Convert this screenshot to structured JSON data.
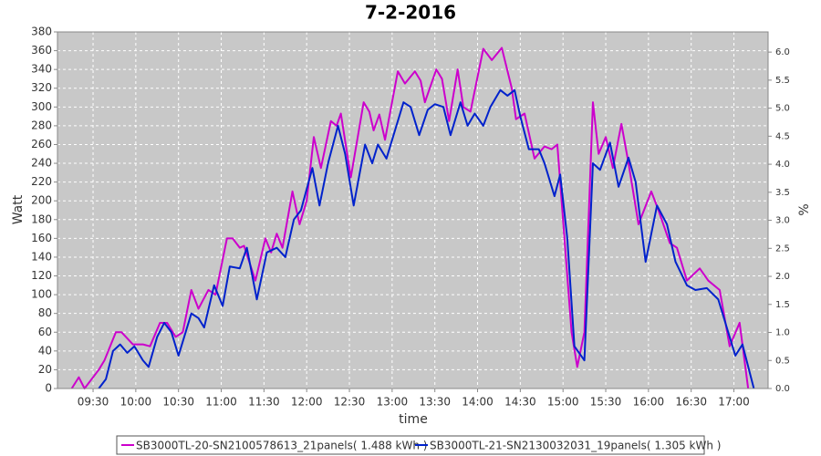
{
  "chart_data": {
    "type": "line",
    "title": "7-2-2016",
    "xlabel": "time",
    "ylabel": "Watt",
    "y2label": "%",
    "xlim": [
      545,
      1044
    ],
    "xticks": [
      {
        "value": 570,
        "label": "09:30"
      },
      {
        "value": 600,
        "label": "10:00"
      },
      {
        "value": 630,
        "label": "10:30"
      },
      {
        "value": 660,
        "label": "11:00"
      },
      {
        "value": 690,
        "label": "11:30"
      },
      {
        "value": 720,
        "label": "12:00"
      },
      {
        "value": 750,
        "label": "12:30"
      },
      {
        "value": 780,
        "label": "13:00"
      },
      {
        "value": 810,
        "label": "13:30"
      },
      {
        "value": 840,
        "label": "14:00"
      },
      {
        "value": 870,
        "label": "14:30"
      },
      {
        "value": 900,
        "label": "15:00"
      },
      {
        "value": 930,
        "label": "15:30"
      },
      {
        "value": 960,
        "label": "16:00"
      },
      {
        "value": 990,
        "label": "16:30"
      },
      {
        "value": 1020,
        "label": "17:00"
      }
    ],
    "ylim": [
      0,
      380
    ],
    "yticks": [
      0,
      20,
      40,
      60,
      80,
      100,
      120,
      140,
      160,
      180,
      200,
      220,
      240,
      260,
      280,
      300,
      320,
      340,
      360,
      380
    ],
    "y2lim": [
      0,
      6.36
    ],
    "y2ticks": [
      {
        "value": 0,
        "label": "0.0"
      },
      {
        "value": 0.5,
        "label": "0.5"
      },
      {
        "value": 1,
        "label": "1.0"
      },
      {
        "value": 1.5,
        "label": "1.5"
      },
      {
        "value": 2,
        "label": "2.0"
      },
      {
        "value": 2.5,
        "label": "2.5"
      },
      {
        "value": 3,
        "label": "3.0"
      },
      {
        "value": 3.5,
        "label": "3.5"
      },
      {
        "value": 4,
        "label": "4.0"
      },
      {
        "value": 4.5,
        "label": "4.5"
      },
      {
        "value": 5,
        "label": "5.0"
      },
      {
        "value": 5.5,
        "label": "5.5"
      },
      {
        "value": 6,
        "label": "6.0"
      }
    ],
    "grid": true,
    "legend": "bottom",
    "series": [
      {
        "name": "SB3000TL-20-SN2100578613_21panels( 1.488 kWh )",
        "color": "#cc00cc",
        "x": [
          555,
          560,
          564,
          574,
          578,
          586,
          590,
          598,
          605,
          610,
          617,
          622,
          628,
          633,
          639,
          644,
          651,
          656,
          664,
          668,
          673,
          676,
          684,
          691,
          695,
          699,
          703,
          710,
          715,
          720,
          725,
          730,
          737,
          741,
          744,
          751,
          760,
          764,
          767,
          771,
          775,
          784,
          789,
          796,
          800,
          803,
          811,
          815,
          820,
          826,
          830,
          835,
          844,
          850,
          857,
          864,
          867,
          873,
          880,
          887,
          892,
          896,
          901,
          906,
          910,
          915,
          921,
          925,
          930,
          935,
          941,
          946,
          953,
          962,
          967,
          975,
          980,
          987,
          996,
          1002,
          1010,
          1017,
          1024,
          1030
        ],
        "values": [
          0,
          12,
          0,
          20,
          30,
          60,
          60,
          47,
          47,
          45,
          70,
          70,
          55,
          60,
          105,
          85,
          105,
          100,
          160,
          160,
          150,
          152,
          115,
          160,
          145,
          165,
          150,
          210,
          175,
          200,
          268,
          235,
          285,
          280,
          293,
          225,
          305,
          295,
          275,
          292,
          265,
          338,
          325,
          338,
          328,
          305,
          340,
          330,
          285,
          340,
          300,
          295,
          362,
          350,
          363,
          320,
          287,
          293,
          245,
          258,
          255,
          260,
          160,
          60,
          23,
          60,
          305,
          250,
          268,
          235,
          282,
          240,
          175,
          210,
          190,
          155,
          150,
          115,
          128,
          115,
          105,
          45,
          70,
          0
        ]
      },
      {
        "name": "SB3000TL-21-SN2130032031_19panels( 1.305 kWh )",
        "color": "#0022cc",
        "x": [
          574,
          579,
          584,
          589,
          594,
          599,
          605,
          609,
          615,
          620,
          625,
          630,
          639,
          644,
          648,
          655,
          661,
          666,
          673,
          678,
          685,
          692,
          699,
          705,
          711,
          716,
          724,
          729,
          735,
          742,
          747,
          753,
          761,
          766,
          770,
          776,
          783,
          788,
          793,
          799,
          805,
          810,
          816,
          821,
          828,
          833,
          838,
          844,
          849,
          856,
          861,
          866,
          870,
          876,
          883,
          887,
          894,
          898,
          903,
          908,
          915,
          921,
          926,
          933,
          939,
          946,
          951,
          958,
          966,
          973,
          979,
          987,
          993,
          1001,
          1009,
          1015,
          1021,
          1026,
          1034
        ],
        "values": [
          0,
          10,
          40,
          47,
          38,
          45,
          30,
          23,
          55,
          70,
          60,
          35,
          80,
          75,
          65,
          110,
          88,
          130,
          128,
          150,
          95,
          145,
          150,
          140,
          180,
          190,
          235,
          195,
          240,
          280,
          250,
          195,
          260,
          240,
          260,
          245,
          280,
          305,
          300,
          270,
          297,
          303,
          300,
          270,
          305,
          280,
          293,
          280,
          300,
          318,
          312,
          318,
          290,
          255,
          255,
          240,
          205,
          228,
          160,
          45,
          30,
          240,
          233,
          262,
          215,
          246,
          220,
          135,
          195,
          175,
          135,
          110,
          105,
          107,
          95,
          65,
          35,
          47,
          0
        ]
      }
    ]
  }
}
